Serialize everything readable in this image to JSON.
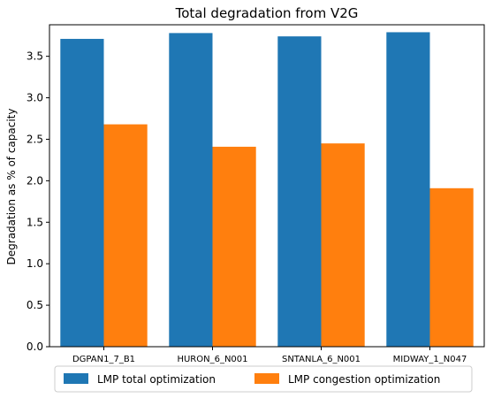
{
  "chart_data": {
    "type": "bar",
    "title": "Total degradation from V2G",
    "xlabel": "",
    "ylabel": "Degradation as % of capacity",
    "categories": [
      "DGPAN1_7_B1",
      "HURON_6_N001",
      "SNTANLA_6_N001",
      "MIDWAY_1_N047"
    ],
    "series": [
      {
        "name": "LMP total optimization",
        "color": "#1f77b4",
        "values": [
          3.71,
          3.78,
          3.74,
          3.79
        ]
      },
      {
        "name": "LMP congestion optimization",
        "color": "#ff7f0e",
        "values": [
          2.68,
          2.41,
          2.45,
          1.91
        ]
      }
    ],
    "ylim": [
      0,
      3.88
    ],
    "yticks": [
      "0.0",
      "0.5",
      "1.0",
      "1.5",
      "2.0",
      "2.5",
      "3.0",
      "3.5"
    ],
    "grid": false,
    "legend_position": "bottom"
  }
}
